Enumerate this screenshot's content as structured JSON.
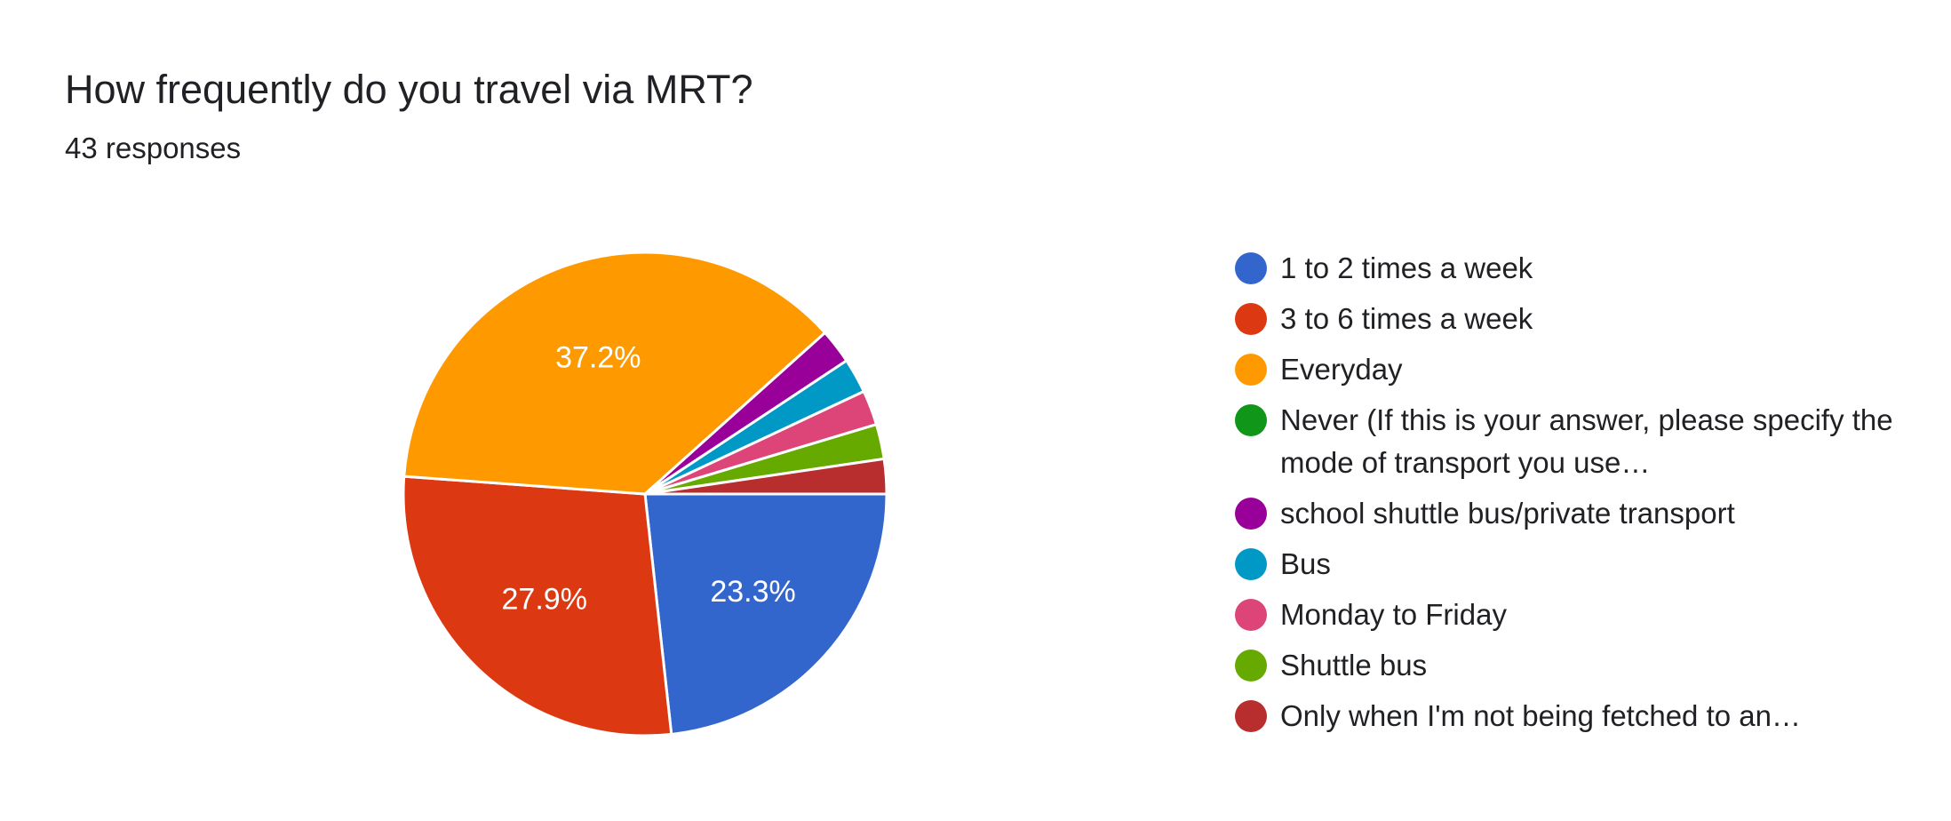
{
  "title": "How frequently do you travel via MRT?",
  "subtitle": "43 responses",
  "chart_data": {
    "type": "pie",
    "title": "How frequently do you travel via MRT?",
    "total_responses": 43,
    "legend_position": "right",
    "slices": [
      {
        "label": "1 to 2 times a week",
        "count": 10,
        "percent": 23.3,
        "color": "#3366cc",
        "display_label": "23.3%"
      },
      {
        "label": "3 to 6 times a week",
        "count": 12,
        "percent": 27.9,
        "color": "#dc3912",
        "display_label": "27.9%"
      },
      {
        "label": "Everyday",
        "count": 16,
        "percent": 37.2,
        "color": "#ff9900",
        "display_label": "37.2%"
      },
      {
        "label": "Never (If this is your answer, please specify the mode of transport you use…",
        "count": 0,
        "percent": 0,
        "color": "#109618",
        "display_label": ""
      },
      {
        "label": "school shuttle bus/private transport",
        "count": 1,
        "percent": 2.3,
        "color": "#990099",
        "display_label": ""
      },
      {
        "label": "Bus",
        "count": 1,
        "percent": 2.3,
        "color": "#0099c6",
        "display_label": ""
      },
      {
        "label": "Monday to Friday",
        "count": 1,
        "percent": 2.3,
        "color": "#dd4477",
        "display_label": ""
      },
      {
        "label": "Shuttle bus",
        "count": 1,
        "percent": 2.3,
        "color": "#66aa00",
        "display_label": ""
      },
      {
        "label": "Only when I'm not being fetched to an…",
        "count": 1,
        "percent": 2.3,
        "color": "#b82e2e",
        "display_label": ""
      }
    ]
  }
}
